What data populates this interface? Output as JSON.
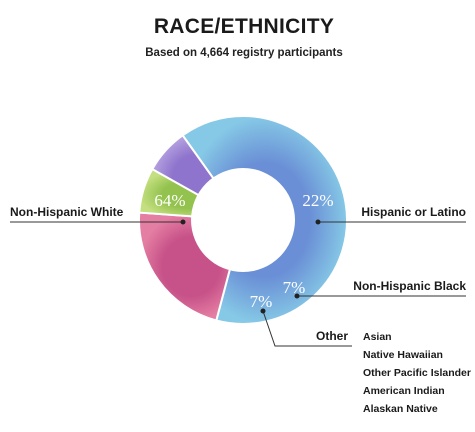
{
  "chart_data": {
    "type": "pie",
    "title": "RACE/ETHNICITY",
    "subtitle": "Based on 4,664 registry participants",
    "donut": true,
    "slices": [
      {
        "label": "Non-Hispanic White",
        "value": 64,
        "value_label": "64%",
        "color": "#7fbde0"
      },
      {
        "label": "Hispanic or Latino",
        "value": 22,
        "value_label": "22%",
        "color": "#de6f97"
      },
      {
        "label": "Non-Hispanic Black",
        "value": 7,
        "value_label": "7%",
        "color": "#b3d46a"
      },
      {
        "label": "Other",
        "value": 7,
        "value_label": "7%",
        "color": "#a58dd6"
      }
    ],
    "other_breakdown": [
      "Asian",
      "Native Hawaiian",
      "Other Pacific Islander",
      "American Indian",
      "Alaskan Native"
    ]
  }
}
